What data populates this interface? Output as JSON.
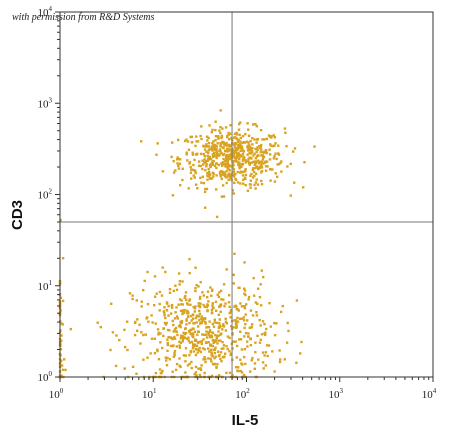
{
  "credit": "with permission from R&D Systems",
  "chart_data": {
    "type": "scatter",
    "title": "",
    "xlabel": "IL-5",
    "ylabel": "CD3",
    "xscale": "log",
    "yscale": "log",
    "xlim": [
      1,
      10000
    ],
    "ylim": [
      1,
      10000
    ],
    "quadrant_gates": {
      "x": 70,
      "y": 50
    },
    "point_color": "#d9a321",
    "gate_color": "#777777",
    "x_ticks": [
      {
        "value": 1,
        "base": "10",
        "exp": "0"
      },
      {
        "value": 10,
        "base": "10",
        "exp": "1"
      },
      {
        "value": 100,
        "base": "10",
        "exp": "2"
      },
      {
        "value": 1000,
        "base": "10",
        "exp": "3"
      },
      {
        "value": 10000,
        "base": "10",
        "exp": "4"
      }
    ],
    "y_ticks": [
      {
        "value": 1,
        "base": "10",
        "exp": "0"
      },
      {
        "value": 10,
        "base": "10",
        "exp": "1"
      },
      {
        "value": 100,
        "base": "10",
        "exp": "2"
      },
      {
        "value": 1000,
        "base": "10",
        "exp": "3"
      },
      {
        "value": 10000,
        "base": "10",
        "exp": "4"
      }
    ],
    "populations": [
      {
        "name": "",
        "x_center": 70,
        "y_center": 250,
        "x_spread": 0.28,
        "y_spread": 0.16,
        "count": 620
      },
      {
        "name": "",
        "x_center": 35,
        "y_center": 3,
        "x_spread": 0.38,
        "y_spread": 0.3,
        "count": 680
      },
      {
        "name": "",
        "x_center": 1,
        "y_center": 2,
        "x_spread": 0.02,
        "y_spread": 0.55,
        "count": 60
      }
    ]
  }
}
